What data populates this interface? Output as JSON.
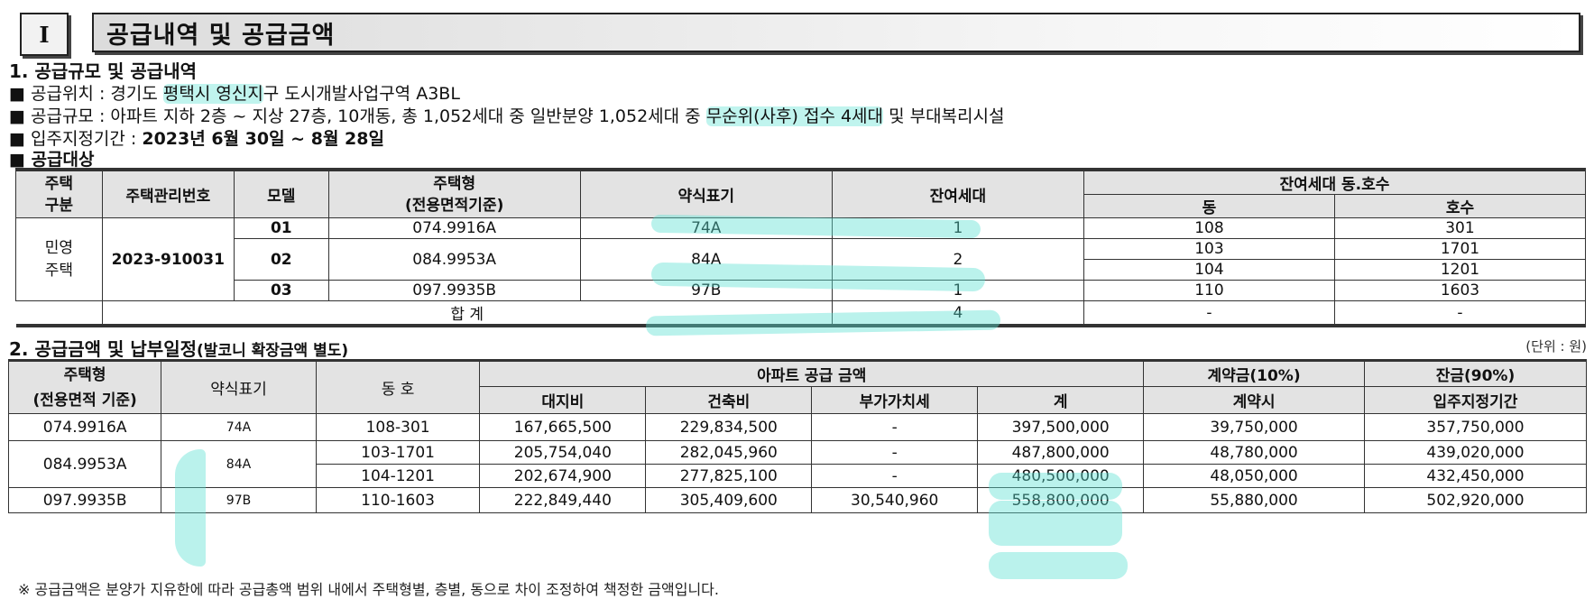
{
  "header": {
    "roman": "I",
    "title": "공급내역 및 공급금액"
  },
  "section1": {
    "heading": "1. 공급규모 및 공급내역",
    "location": {
      "label": "■ 공급위치 : 경기도 ",
      "hl": "평택시 영신지",
      "rest": "구 도시개발사업구역 A3BL"
    },
    "scale": {
      "label": "■ 공급규모 : 아파트 지하 2층 ~ 지상 27층, 10개동, 총 1,052세대 중 일반분양 1,052세대 중 ",
      "hl": "무순위(사후) 접수 4세대",
      "rest": " 및 부대복리시설"
    },
    "move_in": {
      "label": "■ 입주지정기간 : ",
      "value": "2023년 6월 30일 ~ 8월 28일"
    },
    "target": "■ 공급대상",
    "table": {
      "headers": {
        "type": "주택\n구분",
        "mgmt": "주택관리번호",
        "model": "모델",
        "house_type": "주택형\n(전용면적기준)",
        "abbr": "약식표기",
        "remain": "잔여세대",
        "remain_units": "잔여세대 동.호수",
        "dong": "동",
        "ho": "호수"
      },
      "kind": "민영\n주택",
      "mgmt_no": "2023-910031",
      "rows": [
        {
          "model": "01",
          "type": "074.9916A",
          "abbr": "74A",
          "remain": "1",
          "units": [
            {
              "dong": "108",
              "ho": "301"
            }
          ]
        },
        {
          "model": "02",
          "type": "084.9953A",
          "abbr": "84A",
          "remain": "2",
          "units": [
            {
              "dong": "103",
              "ho": "1701"
            },
            {
              "dong": "104",
              "ho": "1201"
            }
          ]
        },
        {
          "model": "03",
          "type": "097.9935B",
          "abbr": "97B",
          "remain": "1",
          "units": [
            {
              "dong": "110",
              "ho": "1603"
            }
          ]
        }
      ],
      "total": {
        "label": "합 계",
        "remain": "4",
        "dong": "-",
        "ho": "-"
      }
    }
  },
  "section2": {
    "heading": "2. 공급금액 및 납부일정",
    "heading_note": "(발코니 확장금액 별도)",
    "unit": "(단위 : 원)",
    "table": {
      "headers": {
        "type": "주택형\n(전용면적 기준)",
        "abbr": "약식표기",
        "unit_no": "동 호",
        "apt_price": "아파트 공급 금액",
        "land": "대지비",
        "build": "건축비",
        "vat": "부가가치세",
        "sum": "계",
        "deposit": "계약금(10%)",
        "deposit_when": "계약시",
        "balance": "잔금(90%)",
        "balance_when": "입주지정기간"
      },
      "groups": [
        {
          "type": "074.9916A",
          "abbr": "74A",
          "rows": [
            {
              "unit": "108-301",
              "land": "167,665,500",
              "build": "229,834,500",
              "vat": "-",
              "sum": "397,500,000",
              "deposit": "39,750,000",
              "balance": "357,750,000"
            }
          ]
        },
        {
          "type": "084.9953A",
          "abbr": "84A",
          "rows": [
            {
              "unit": "103-1701",
              "land": "205,754,040",
              "build": "282,045,960",
              "vat": "-",
              "sum": "487,800,000",
              "deposit": "48,780,000",
              "balance": "439,020,000"
            },
            {
              "unit": "104-1201",
              "land": "202,674,900",
              "build": "277,825,100",
              "vat": "-",
              "sum": "480,500,000",
              "deposit": "48,050,000",
              "balance": "432,450,000"
            }
          ]
        },
        {
          "type": "097.9935B",
          "abbr": "97B",
          "rows": [
            {
              "unit": "110-1603",
              "land": "222,849,440",
              "build": "305,409,600",
              "vat": "30,540,960",
              "sum": "558,800,000",
              "deposit": "55,880,000",
              "balance": "502,920,000"
            }
          ]
        }
      ]
    },
    "note": "※ 공급금액은 분양가 지유한에 따라 공급총액 범위 내에서 주택형별, 층별, 동으로 차이 조정하여 책정한 금액입니다."
  }
}
